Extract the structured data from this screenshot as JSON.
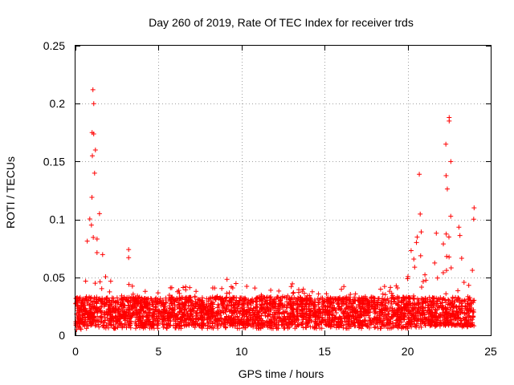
{
  "chart_data": {
    "type": "scatter",
    "title": "Day 260 of 2019, Rate Of TEC Index for receiver trds",
    "xlabel": "GPS time / hours",
    "ylabel": "ROTI / TECUs",
    "xlim": [
      0,
      25
    ],
    "ylim": [
      0,
      0.25
    ],
    "x_ticks": [
      0,
      5,
      10,
      15,
      20,
      25
    ],
    "y_ticks": [
      0,
      0.05,
      0.1,
      0.15,
      0.2,
      0.25
    ],
    "x_tick_labels": [
      "0",
      "5",
      "10",
      "15",
      "20",
      "25"
    ],
    "y_tick_labels": [
      "0",
      "0.05",
      "0.1",
      "0.15",
      "0.2",
      "0.25"
    ],
    "grid": true,
    "marker": "plus",
    "series_color": "#ff0000",
    "envelope": {
      "x": [
        0.0,
        0.2,
        0.4,
        0.6,
        0.8,
        1.0,
        1.1,
        1.2,
        1.4,
        1.6,
        1.8,
        2.0,
        2.3,
        2.7,
        3.0,
        3.3,
        4.0,
        5.0,
        6.0,
        7.0,
        8.0,
        9.0,
        10.0,
        11.0,
        12.0,
        13.0,
        14.0,
        15.0,
        16.0,
        17.0,
        18.0,
        19.0,
        19.5,
        20.0,
        20.4,
        20.8,
        21.2,
        21.6,
        22.0,
        22.3,
        22.6,
        22.9,
        23.2,
        23.5,
        23.8,
        24.0
      ],
      "upper": [
        0.04,
        0.045,
        0.06,
        0.07,
        0.1,
        0.16,
        0.2,
        0.17,
        0.12,
        0.08,
        0.06,
        0.05,
        0.045,
        0.04,
        0.045,
        0.05,
        0.04,
        0.038,
        0.045,
        0.042,
        0.04,
        0.05,
        0.045,
        0.04,
        0.04,
        0.045,
        0.04,
        0.04,
        0.045,
        0.04,
        0.04,
        0.045,
        0.05,
        0.06,
        0.09,
        0.11,
        0.08,
        0.09,
        0.12,
        0.16,
        0.18,
        0.14,
        0.1,
        0.08,
        0.09,
        0.11
      ],
      "lower": [
        0.005,
        0.005,
        0.005,
        0.006,
        0.006,
        0.008,
        0.008,
        0.008,
        0.007,
        0.006,
        0.006,
        0.006,
        0.006,
        0.006,
        0.006,
        0.006,
        0.006,
        0.006,
        0.006,
        0.006,
        0.006,
        0.006,
        0.006,
        0.006,
        0.006,
        0.006,
        0.006,
        0.006,
        0.006,
        0.006,
        0.006,
        0.006,
        0.006,
        0.006,
        0.007,
        0.007,
        0.007,
        0.007,
        0.008,
        0.008,
        0.008,
        0.008,
        0.007,
        0.007,
        0.007,
        0.007
      ]
    },
    "notable_points": [
      {
        "x": 1.05,
        "y": 0.212
      },
      {
        "x": 1.1,
        "y": 0.2
      },
      {
        "x": 1.0,
        "y": 0.175
      },
      {
        "x": 1.2,
        "y": 0.16
      },
      {
        "x": 1.15,
        "y": 0.14
      },
      {
        "x": 3.2,
        "y": 0.074
      },
      {
        "x": 3.2,
        "y": 0.067
      },
      {
        "x": 20.7,
        "y": 0.139
      },
      {
        "x": 22.5,
        "y": 0.188
      },
      {
        "x": 22.5,
        "y": 0.185
      },
      {
        "x": 22.3,
        "y": 0.165
      },
      {
        "x": 22.6,
        "y": 0.15
      },
      {
        "x": 24.0,
        "y": 0.11
      }
    ]
  }
}
